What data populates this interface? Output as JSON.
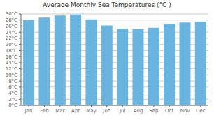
{
  "chart_data": {
    "type": "bar",
    "title": "Average Monthly Sea Temperatures (°C )",
    "categories": [
      "Jan",
      "Feb",
      "Mar",
      "Apr",
      "May",
      "Jun",
      "Jul",
      "Aug",
      "Sep",
      "Oct",
      "Nov",
      "Dec"
    ],
    "values": [
      28.0,
      28.8,
      29.5,
      29.8,
      28.2,
      26.2,
      25.2,
      25.0,
      25.5,
      26.8,
      27.2,
      27.5
    ],
    "color": "#6ab4e0",
    "ylim": [
      0,
      30
    ],
    "yticks": [
      {
        "value": 0,
        "label": "0°C"
      },
      {
        "value": 2,
        "label": "2°C"
      },
      {
        "value": 4,
        "label": "4°C"
      },
      {
        "value": 6,
        "label": "6°C"
      },
      {
        "value": 8,
        "label": "8°C"
      },
      {
        "value": 10,
        "label": "10°C"
      },
      {
        "value": 12,
        "label": "12°C"
      },
      {
        "value": 14,
        "label": "14°C"
      },
      {
        "value": 16,
        "label": "16°C"
      },
      {
        "value": 18,
        "label": "18°C"
      },
      {
        "value": 20,
        "label": "20°C"
      },
      {
        "value": 22,
        "label": "22°C"
      },
      {
        "value": 24,
        "label": "24°C"
      },
      {
        "value": 26,
        "label": "26°C"
      },
      {
        "value": 28,
        "label": "28°C"
      },
      {
        "value": 30,
        "label": "30°C"
      }
    ],
    "grid": true
  }
}
